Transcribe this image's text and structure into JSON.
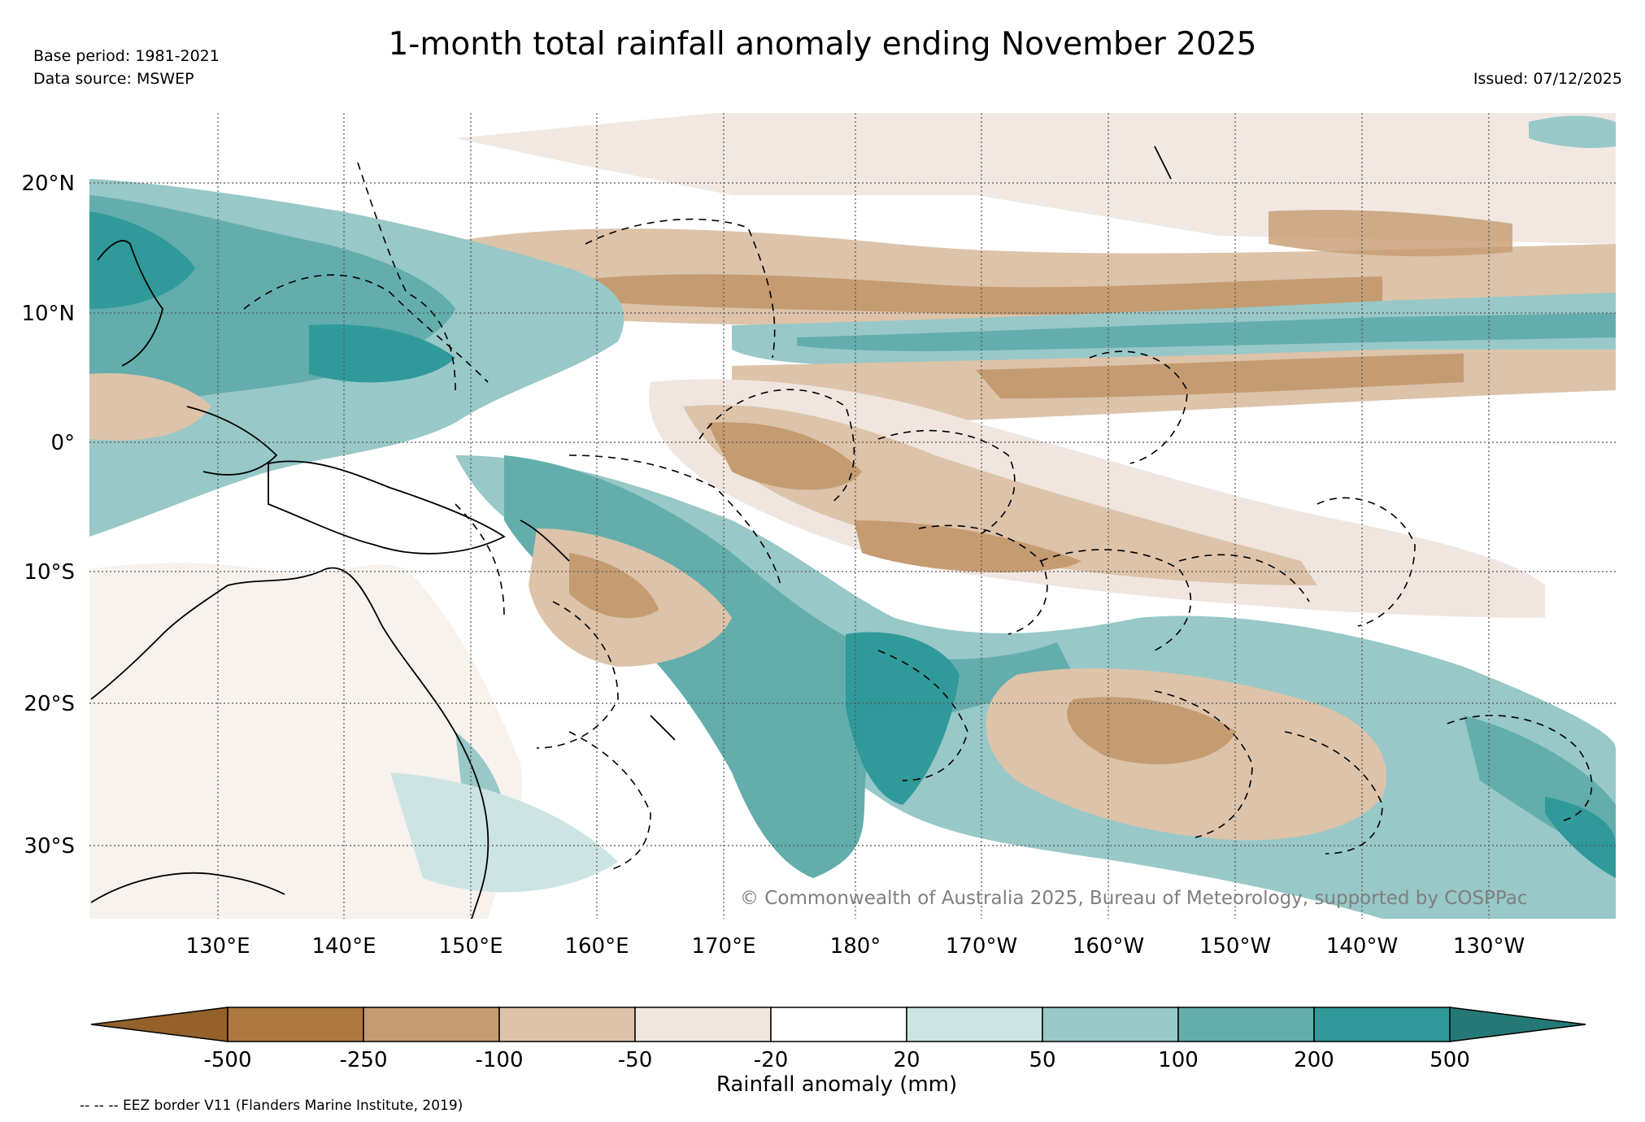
{
  "title": "1-month total rainfall anomaly ending November 2025",
  "base_period": "Base period: 1981-2021",
  "data_source": "Data source: MSWEP",
  "issued": "Issued: 07/12/2025",
  "copyright": "© Commonwealth of Australia 2025, Bureau of Meteorology, supported by COSPPac",
  "eez_note": "-- -- -- EEZ border V11 (Flanders Marine Institute, 2019)",
  "map": {
    "lat_labels": [
      "20°N",
      "10°N",
      "0°",
      "10°S",
      "20°S",
      "30°S"
    ],
    "lon_labels": [
      "130°E",
      "140°E",
      "150°E",
      "160°E",
      "170°E",
      "180°",
      "170°W",
      "160°W",
      "150°W",
      "140°W",
      "130°W"
    ]
  },
  "colorbar": {
    "label": "Rainfall anomaly (mm)",
    "ticks": [
      "-500",
      "-250",
      "-100",
      "-50",
      "-20",
      "20",
      "50",
      "100",
      "200",
      "500"
    ],
    "colors": [
      "#95602a",
      "#ad783e",
      "#c59b71",
      "#dcc3aa",
      "#f0e6df",
      "#ffffff",
      "#cde4e4",
      "#98c8c8",
      "#63adac",
      "#30999a",
      "#257878"
    ]
  }
}
